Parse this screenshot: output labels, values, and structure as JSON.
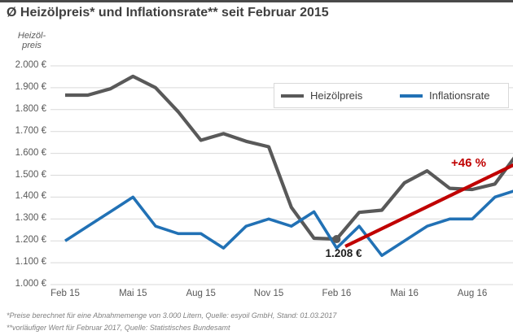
{
  "header": {
    "title": "Ø Heizölpreis* und Inflationsrate** seit Februar 2015"
  },
  "y_axis": {
    "title_lines": [
      "Heizöl-",
      "preis"
    ],
    "tick_labels": [
      "2.000 €",
      "1.900 €",
      "1.800 €",
      "1.700 €",
      "1.600 €",
      "1.500 €",
      "1.400 €",
      "1.300 €",
      "1.200 €",
      "1.100 €",
      "1.000 €"
    ]
  },
  "x_axis": {
    "ticks": [
      {
        "label": "Feb 15",
        "month_index": 0
      },
      {
        "label": "Mai 15",
        "month_index": 3
      },
      {
        "label": "Aug 15",
        "month_index": 6
      },
      {
        "label": "Nov 15",
        "month_index": 9
      },
      {
        "label": "Feb 16",
        "month_index": 12
      },
      {
        "label": "Mai 16",
        "month_index": 15
      },
      {
        "label": "Aug 16",
        "month_index": 18
      }
    ]
  },
  "legend": {
    "items": [
      {
        "label": "Heizölpreis",
        "color": "#595959"
      },
      {
        "label": "Inflationsrate",
        "color": "#2171b5"
      }
    ]
  },
  "annotations": {
    "low_point_label": "1.208 €",
    "low_point_value": 1208,
    "low_point_month": "Feb 16",
    "trend_label": "+46 %",
    "trend_color": "#c00000"
  },
  "footnotes": [
    "*Preise berechnet für eine Abnahmemenge von 3.000 Litern, Quelle: esyoil GmbH, Stand: 01.03.2017",
    "**vorläufiger Wert für Februar 2017, Quelle: Statistisches Bundesamt"
  ],
  "chart_data": {
    "type": "line",
    "title": "Ø Heizölpreis* und Inflationsrate** seit Februar 2015",
    "x": [
      "Feb 15",
      "Mär 15",
      "Apr 15",
      "Mai 15",
      "Jun 15",
      "Jul 15",
      "Aug 15",
      "Sep 15",
      "Okt 15",
      "Nov 15",
      "Dez 15",
      "Jan 16",
      "Feb 16",
      "Mär 16",
      "Apr 16",
      "Mai 16",
      "Jun 16",
      "Jul 16",
      "Aug 16",
      "Sep 16",
      "Okt 16"
    ],
    "ylabel": "Heizölpreis (€)",
    "ylim": [
      1000,
      2000
    ],
    "y_tick_step": 100,
    "grid": "horizontal",
    "legend_position": "top-right-inside",
    "right_edge_cropped": true,
    "series": [
      {
        "name": "Heizölpreis",
        "color": "#595959",
        "unit": "EUR",
        "values": [
          1866,
          1866,
          1895,
          1952,
          1900,
          1790,
          1660,
          1690,
          1655,
          1630,
          1353,
          1212,
          1208,
          1330,
          1340,
          1465,
          1520,
          1440,
          1435,
          1460,
          1600
        ]
      },
      {
        "name": "Inflationsrate",
        "color": "#2171b5",
        "unit": "plotted on price axis, no secondary axis shown",
        "values": [
          1200,
          1267,
          1333,
          1400,
          1267,
          1233,
          1233,
          1167,
          1267,
          1300,
          1267,
          1333,
          1167,
          1267,
          1133,
          1200,
          1267,
          1300,
          1300,
          1400,
          1433
        ]
      }
    ],
    "annotations": [
      {
        "type": "marker-point",
        "x": "Feb 16",
        "value": 1208,
        "label": "1.208 €",
        "color": "#595959"
      },
      {
        "type": "trend-line",
        "label": "+46 %",
        "color": "#c00000",
        "from_month": "Mär 16",
        "from_value": 1175,
        "to": "beyond right image edge (rising straight line)"
      }
    ]
  }
}
